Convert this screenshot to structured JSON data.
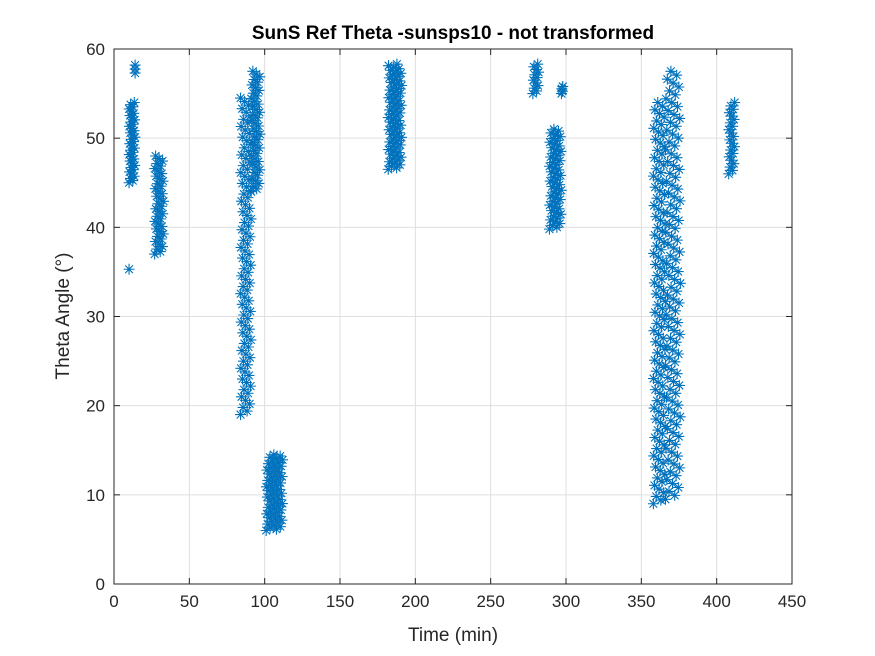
{
  "chart_data": {
    "type": "scatter",
    "title": "SunS Ref Theta -sunsps10 - not transformed",
    "xlabel": "Time (min)",
    "ylabel": "Theta Angle (°)",
    "xlim": [
      0,
      450
    ],
    "ylim": [
      0,
      60
    ],
    "xticks": [
      0,
      50,
      100,
      150,
      200,
      250,
      300,
      350,
      400,
      450
    ],
    "yticks": [
      0,
      10,
      20,
      30,
      40,
      50,
      60
    ],
    "grid": true,
    "marker": "asterisk",
    "color": "#0072BD",
    "series": [
      {
        "clusters": [
          {
            "x": [
              10,
              14
            ],
            "y": [
              45,
              54
            ],
            "points": 38
          },
          {
            "x": [
              10,
              10
            ],
            "y": [
              35.3,
              35.3
            ],
            "points": 1
          },
          {
            "x": [
              14,
              14
            ],
            "y": [
              57.3,
              58.2
            ],
            "points": 3
          },
          {
            "x": [
              27,
              33
            ],
            "y": [
              37,
              48
            ],
            "points": 40
          },
          {
            "x": [
              84,
              91
            ],
            "y": [
              19,
              54.5
            ],
            "points": 90
          },
          {
            "x": [
              91,
              97
            ],
            "y": [
              44,
              57.5
            ],
            "points": 45
          },
          {
            "x": [
              101,
              112
            ],
            "y": [
              6,
              14.5
            ],
            "points": 60
          },
          {
            "x": [
              182,
              191
            ],
            "y": [
              46.5,
              58.3
            ],
            "points": 70
          },
          {
            "x": [
              278,
              282
            ],
            "y": [
              55,
              58.3
            ],
            "points": 12
          },
          {
            "x": [
              289,
              297
            ],
            "y": [
              39.8,
              51
            ],
            "points": 55
          },
          {
            "x": [
              297,
              298
            ],
            "y": [
              55,
              55.8
            ],
            "points": 4
          },
          {
            "x": [
              358,
              366
            ],
            "y": [
              9,
              54
            ],
            "points": 110
          },
          {
            "x": [
              366,
              376
            ],
            "y": [
              9.5,
              57.5
            ],
            "points": 110
          },
          {
            "x": [
              408,
              412
            ],
            "y": [
              46,
              54
            ],
            "points": 22
          }
        ]
      }
    ]
  }
}
